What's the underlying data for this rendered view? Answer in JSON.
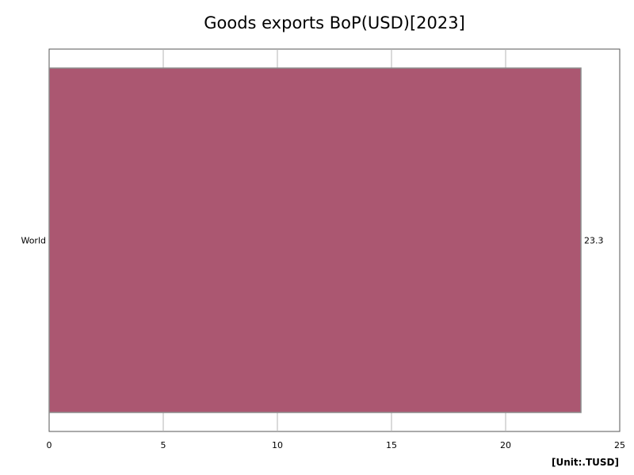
{
  "chart_data": {
    "type": "bar",
    "orientation": "horizontal",
    "title": "Goods exports BoP(USD)[2023]",
    "unit_label": "[Unit:.TUSD]",
    "categories": [
      "World"
    ],
    "values": [
      23.3
    ],
    "value_labels": [
      "23.3"
    ],
    "xlim": [
      0,
      25
    ],
    "x_ticks": [
      0,
      5,
      10,
      15,
      20,
      25
    ],
    "grid": true,
    "bar_color": "#ab5771"
  }
}
